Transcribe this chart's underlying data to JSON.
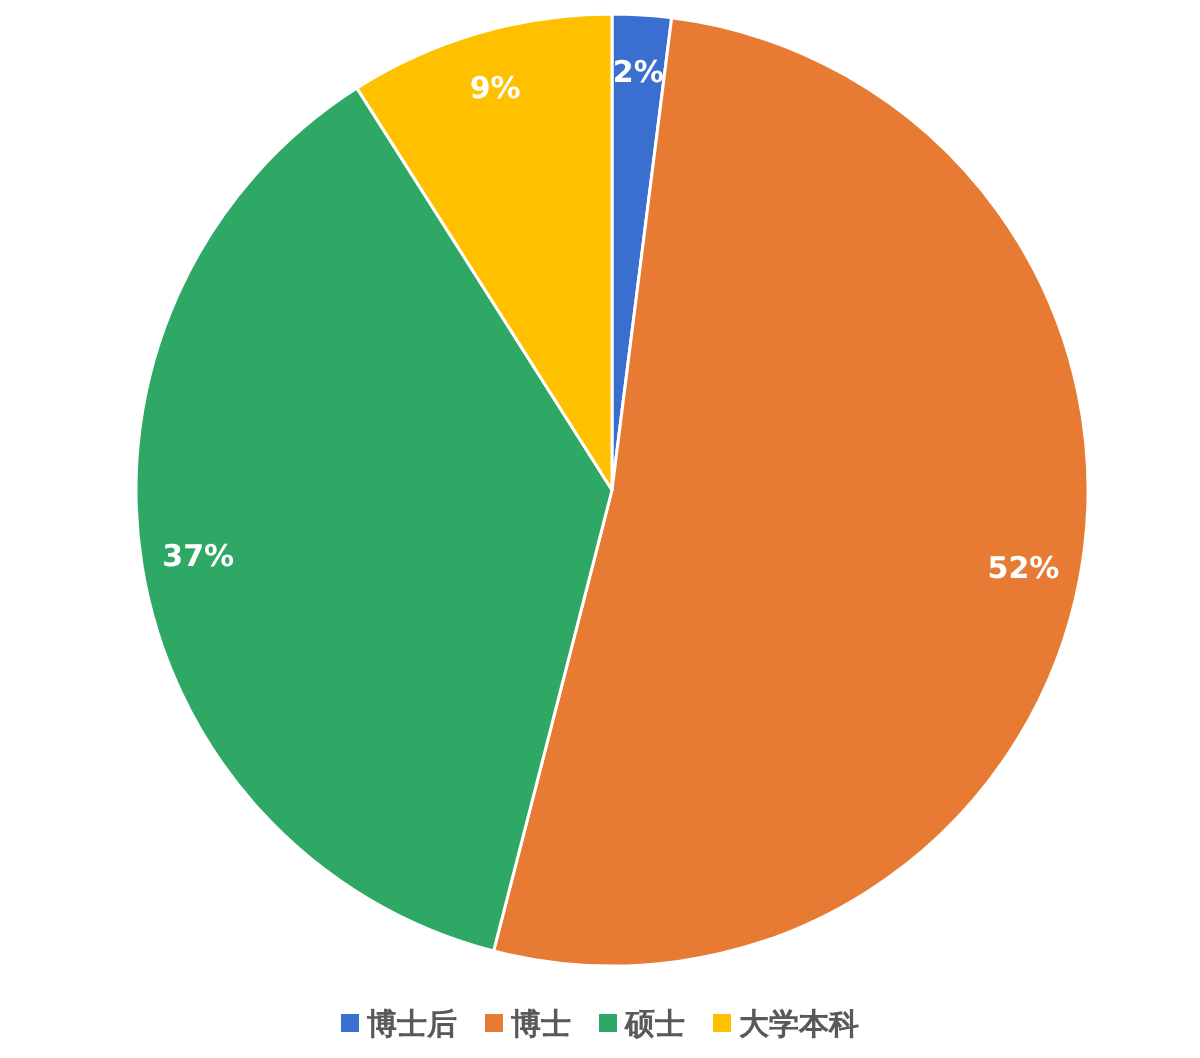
{
  "chart_data": {
    "type": "pie",
    "categories": [
      "博士后",
      "博士",
      "硕士",
      "大学本科"
    ],
    "values": [
      2,
      52,
      37,
      9
    ],
    "colors": [
      "#3a6fd0",
      "#e87b33",
      "#2fa866",
      "#ffc000"
    ],
    "value_labels": [
      "2%",
      "52%",
      "37%",
      "9%"
    ],
    "legend": "bottom"
  }
}
